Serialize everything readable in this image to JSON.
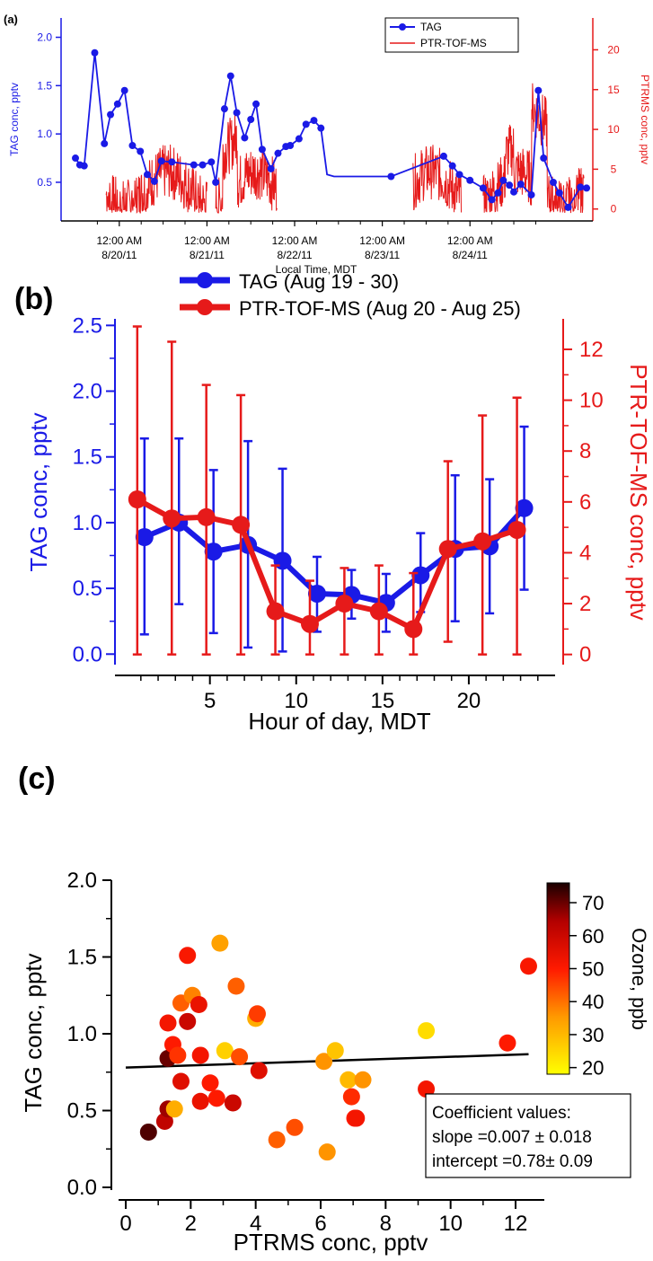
{
  "colors": {
    "tag": "#1a1ae6",
    "ptr": "#e61a1a",
    "axis": "#000000"
  },
  "chart_data": [
    {
      "panel": "(a)",
      "type": "line",
      "xlabel": "Local Time, MDT",
      "x_ticks": [
        {
          "time": "12:00 AM",
          "date": "8/20/11"
        },
        {
          "time": "12:00 AM",
          "date": "8/21/11"
        },
        {
          "time": "12:00 AM",
          "date": "8/22/11"
        },
        {
          "time": "12:00 AM",
          "date": "8/23/11"
        },
        {
          "time": "12:00 AM",
          "date": "8/24/11"
        }
      ],
      "y_left": {
        "label": "TAG conc, pptv",
        "ticks": [
          "0.5",
          "1.0",
          "1.5",
          "2.0"
        ],
        "range": [
          0.1,
          2.2
        ]
      },
      "y_right": {
        "label": "PTRMS conc, pptv",
        "ticks": [
          "0",
          "5",
          "10",
          "15",
          "20"
        ],
        "range": [
          -1.5,
          24
        ]
      },
      "legend": [
        "TAG",
        "PTR-TOF-MS"
      ],
      "legend_position": "top-right",
      "series": [
        {
          "name": "TAG",
          "axis": "left",
          "x_days": [
            0.0,
            0.05,
            0.1,
            0.22,
            0.33,
            0.4,
            0.48,
            0.56,
            0.65,
            0.74,
            0.82,
            0.9,
            0.98,
            1.1,
            1.35,
            1.45,
            1.55,
            1.6,
            1.7,
            1.77,
            1.84,
            1.93,
            2.0,
            2.06,
            2.13,
            2.23,
            2.31,
            2.4,
            2.45,
            2.55,
            2.63,
            2.72,
            2.8,
            2.87,
            2.95,
            3.05,
            3.13,
            3.2,
            3.27,
            3.35,
            3.42,
            3.5,
            3.6,
            4.2,
            4.3,
            4.38,
            4.5,
            4.65,
            4.75,
            4.82,
            4.88,
            4.95,
            5.0,
            5.08,
            5.2,
            5.28,
            5.34,
            5.45,
            5.52,
            5.62,
            5.76,
            5.83
          ],
          "values": [
            0.75,
            0.68,
            0.67,
            1.84,
            0.9,
            1.2,
            1.31,
            1.45,
            0.88,
            0.82,
            0.58,
            0.51,
            0.72,
            0.71,
            0.68,
            0.68,
            0.71,
            0.5,
            1.26,
            1.6,
            1.22,
            0.96,
            1.15,
            1.31,
            0.84,
            0.64,
            0.8,
            0.87,
            0.88,
            0.95,
            1.1,
            1.14,
            1.06,
            0.58,
            0.56,
            0.56,
            0.56,
            0.56,
            0.56,
            0.56,
            0.56,
            0.56,
            0.56,
            0.77,
            0.67,
            0.58,
            0.52,
            0.44,
            0.32,
            0.39,
            0.52,
            0.47,
            0.4,
            0.48,
            0.37,
            1.45,
            0.75,
            0.5,
            0.39,
            0.24,
            0.45,
            0.44
          ],
          "note": ""
        },
        {
          "name": "PTR-TOF-MS",
          "axis": "right",
          "segments_days": [
            [
              0.35,
              1.5
            ],
            [
              1.6,
              2.3
            ],
            [
              3.85,
              4.4
            ],
            [
              4.65,
              5.8
            ]
          ],
          "values_summary": "noisy trace 0-20 pptv"
        }
      ]
    },
    {
      "panel": "(b)",
      "type": "line",
      "xlabel": "Hour of day, MDT",
      "x_ticks": [
        5,
        10,
        15,
        20
      ],
      "xlim": [
        -0.5,
        25
      ],
      "y_left": {
        "label": "TAG conc, pptv",
        "ticks": [
          "0.0",
          "0.5",
          "1.0",
          "1.5",
          "2.0",
          "2.5"
        ],
        "range": [
          -0.08,
          2.55
        ]
      },
      "y_right": {
        "label": "PTR-TOF-MS conc, pptv",
        "ticks": [
          "0",
          "2",
          "4",
          "6",
          "8",
          "10",
          "12"
        ],
        "range": [
          -0.4,
          13.2
        ]
      },
      "legend_position": "top",
      "series": [
        {
          "name": "TAG (Aug 19 - 30)",
          "axis": "left",
          "x": [
            1,
            3,
            5,
            7,
            9,
            11,
            13,
            15,
            17,
            19,
            21,
            23
          ],
          "values": [
            0.89,
            1.0,
            0.78,
            0.83,
            0.71,
            0.46,
            0.45,
            0.39,
            0.6,
            0.8,
            0.82,
            1.11
          ],
          "err_low": [
            0.15,
            0.38,
            0.16,
            0.05,
            0.02,
            0.17,
            0.27,
            0.17,
            0.32,
            0.25,
            0.31,
            0.49
          ],
          "err_high": [
            1.64,
            1.64,
            1.4,
            1.62,
            1.41,
            0.74,
            0.64,
            0.61,
            0.92,
            1.36,
            1.33,
            1.73
          ]
        },
        {
          "name": "PTR-TOF-MS (Aug 20 - Aug 25)",
          "axis": "right",
          "x": [
            1,
            3,
            5,
            7,
            9,
            11,
            13,
            15,
            17,
            19,
            21,
            23
          ],
          "values": [
            6.1,
            5.35,
            5.4,
            5.1,
            1.7,
            1.2,
            2.0,
            1.7,
            1.0,
            4.15,
            4.45,
            4.9
          ],
          "err_low": [
            0.0,
            0.0,
            0.0,
            0.0,
            0.0,
            0.0,
            0.0,
            0.0,
            0.0,
            0.5,
            0.0,
            0.0
          ],
          "err_high": [
            12.9,
            12.3,
            10.6,
            10.2,
            3.5,
            2.9,
            3.4,
            3.5,
            3.2,
            7.6,
            9.4,
            10.1
          ]
        }
      ]
    },
    {
      "panel": "(c)",
      "type": "scatter",
      "xlabel": "PTRMS conc, pptv",
      "ylabel": "TAG conc, pptv",
      "xlim": [
        -0.2,
        13
      ],
      "ylim": [
        -0.1,
        2.0
      ],
      "x_ticks": [
        0,
        2,
        4,
        6,
        8,
        10,
        12
      ],
      "y_ticks": [
        "0.0",
        "0.5",
        "1.0",
        "1.5",
        "2.0"
      ],
      "colorbar": {
        "label": "Ozone, ppb",
        "ticks": [
          20,
          30,
          40,
          50,
          60,
          70
        ],
        "range": [
          18,
          76
        ]
      },
      "fit": {
        "slope": 0.007,
        "intercept": 0.78,
        "x_range": [
          0,
          12.4
        ]
      },
      "coefficients": {
        "title": "Coefficient values:",
        "slope": "slope =0.007 ± 0.018",
        "intercept": "intercept =0.78± 0.09"
      },
      "points": [
        {
          "x": 0.7,
          "y": 0.36,
          "ozone": 72
        },
        {
          "x": 1.2,
          "y": 0.43,
          "ozone": 62
        },
        {
          "x": 1.3,
          "y": 0.51,
          "ozone": 66
        },
        {
          "x": 1.5,
          "y": 0.51,
          "ozone": 32
        },
        {
          "x": 1.3,
          "y": 0.84,
          "ozone": 70
        },
        {
          "x": 1.45,
          "y": 0.93,
          "ozone": 50
        },
        {
          "x": 1.3,
          "y": 1.07,
          "ozone": 52
        },
        {
          "x": 1.7,
          "y": 0.69,
          "ozone": 56
        },
        {
          "x": 1.6,
          "y": 0.86,
          "ozone": 47
        },
        {
          "x": 1.9,
          "y": 1.08,
          "ozone": 60
        },
        {
          "x": 1.7,
          "y": 1.2,
          "ozone": 42
        },
        {
          "x": 1.9,
          "y": 1.51,
          "ozone": 51
        },
        {
          "x": 2.05,
          "y": 1.25,
          "ozone": 38
        },
        {
          "x": 2.25,
          "y": 1.19,
          "ozone": 54
        },
        {
          "x": 2.3,
          "y": 0.86,
          "ozone": 52
        },
        {
          "x": 2.3,
          "y": 0.56,
          "ozone": 54
        },
        {
          "x": 2.6,
          "y": 0.68,
          "ozone": 50
        },
        {
          "x": 2.8,
          "y": 0.58,
          "ozone": 50
        },
        {
          "x": 2.9,
          "y": 1.59,
          "ozone": 34
        },
        {
          "x": 3.05,
          "y": 0.89,
          "ozone": 26
        },
        {
          "x": 3.3,
          "y": 0.55,
          "ozone": 60
        },
        {
          "x": 3.4,
          "y": 1.31,
          "ozone": 42
        },
        {
          "x": 3.5,
          "y": 0.85,
          "ozone": 44
        },
        {
          "x": 4.0,
          "y": 1.1,
          "ozone": 32
        },
        {
          "x": 4.05,
          "y": 1.13,
          "ozone": 46
        },
        {
          "x": 4.1,
          "y": 0.76,
          "ozone": 56
        },
        {
          "x": 4.65,
          "y": 0.31,
          "ozone": 42
        },
        {
          "x": 5.2,
          "y": 0.39,
          "ozone": 44
        },
        {
          "x": 6.1,
          "y": 0.82,
          "ozone": 36
        },
        {
          "x": 6.2,
          "y": 0.23,
          "ozone": 36
        },
        {
          "x": 6.45,
          "y": 0.89,
          "ozone": 28
        },
        {
          "x": 6.85,
          "y": 0.7,
          "ozone": 30
        },
        {
          "x": 6.95,
          "y": 0.59,
          "ozone": 48
        },
        {
          "x": 7.05,
          "y": 0.45,
          "ozone": 50
        },
        {
          "x": 7.1,
          "y": 0.45,
          "ozone": 52
        },
        {
          "x": 7.3,
          "y": 0.7,
          "ozone": 36
        },
        {
          "x": 9.25,
          "y": 1.02,
          "ozone": 24
        },
        {
          "x": 9.25,
          "y": 0.64,
          "ozone": 52
        },
        {
          "x": 11.75,
          "y": 0.94,
          "ozone": 50
        },
        {
          "x": 12.4,
          "y": 1.44,
          "ozone": 51
        }
      ]
    }
  ]
}
